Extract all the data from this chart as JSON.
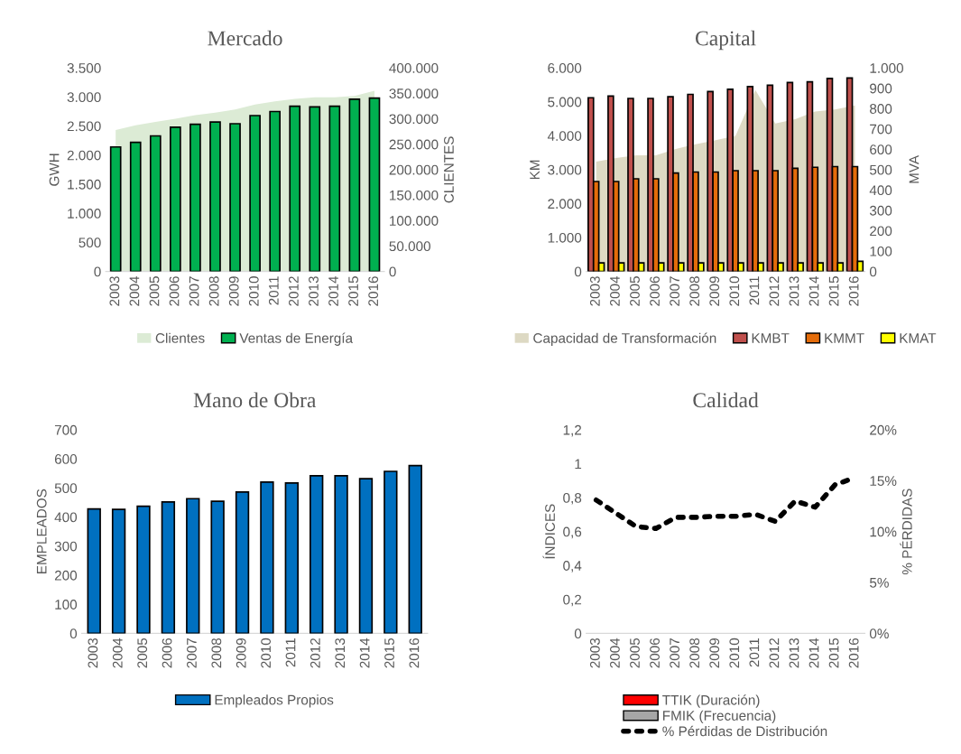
{
  "chart_data": [
    {
      "type": "bar",
      "title": "Mercado",
      "ylabel": "GWH",
      "y2label": "CLIENTES",
      "categories": [
        "2003",
        "2004",
        "2005",
        "2006",
        "2007",
        "2008",
        "2009",
        "2010",
        "2011",
        "2012",
        "2013",
        "2014",
        "2015",
        "2016"
      ],
      "series": [
        {
          "name": "Clientes",
          "type": "area",
          "axis": "y2",
          "color": "#dcebd5",
          "values": [
            278000,
            287000,
            294000,
            300000,
            307000,
            312000,
            318000,
            328000,
            334000,
            339000,
            342000,
            342000,
            345000,
            355000
          ]
        },
        {
          "name": "Ventas de Energía",
          "color": "#00b050",
          "values": [
            2140,
            2220,
            2330,
            2480,
            2530,
            2570,
            2540,
            2680,
            2750,
            2840,
            2830,
            2840,
            2960,
            2980
          ]
        }
      ],
      "ylim": [
        0,
        3500
      ],
      "yticks": [
        0,
        {
          "value": 500,
          "label": "500"
        },
        {
          "value": 1000,
          "label": "1.000"
        },
        {
          "value": 1500,
          "label": "1.500"
        },
        {
          "value": 2000,
          "label": "2.000"
        },
        {
          "value": 2500,
          "label": "2.500"
        },
        {
          "value": 3000,
          "label": "3.000"
        },
        {
          "value": 3500,
          "label": "3.500"
        }
      ],
      "y2lim": [
        0,
        400000
      ],
      "y2ticks": [
        0,
        {
          "value": 50000,
          "label": "50.000"
        },
        {
          "value": 100000,
          "label": "100.000"
        },
        {
          "value": 150000,
          "label": "150.000"
        },
        {
          "value": 200000,
          "label": "200.000"
        },
        {
          "value": 250000,
          "label": "250.000"
        },
        {
          "value": 300000,
          "label": "300.000"
        },
        {
          "value": 350000,
          "label": "350.000"
        },
        {
          "value": 400000,
          "label": "400.000"
        }
      ],
      "legend": "bottom",
      "grid": false
    },
    {
      "type": "bar",
      "title": "Capital",
      "ylabel": "KM",
      "y2label": "MVA",
      "categories": [
        "2003",
        "2004",
        "2005",
        "2006",
        "2007",
        "2008",
        "2009",
        "2010",
        "2011",
        "2012",
        "2013",
        "2014",
        "2015",
        "2016"
      ],
      "series": [
        {
          "name": "Capacidad de Transformación",
          "type": "area",
          "axis": "y2",
          "color": "#ddd9c3",
          "values": [
            539,
            557,
            570,
            570,
            602,
            625,
            645,
            666,
            891,
            727,
            748,
            786,
            795,
            816
          ]
        },
        {
          "name": "KMBT",
          "color": "#c0504d",
          "values": [
            5120,
            5170,
            5100,
            5100,
            5150,
            5220,
            5300,
            5370,
            5450,
            5490,
            5570,
            5590,
            5690,
            5700
          ]
        },
        {
          "name": "KMMT",
          "color": "#e46c0a",
          "values": [
            2650,
            2650,
            2730,
            2730,
            2900,
            2930,
            2930,
            2970,
            2970,
            2970,
            3040,
            3070,
            3090,
            3090
          ]
        },
        {
          "name": "KMAT",
          "color": "#ffff00",
          "values": [
            250,
            250,
            250,
            250,
            250,
            250,
            250,
            250,
            250,
            250,
            250,
            250,
            250,
            300
          ]
        }
      ],
      "ylim": [
        0,
        6000
      ],
      "yticks": [
        0,
        {
          "value": 1000,
          "label": "1.000"
        },
        {
          "value": 2000,
          "label": "2.000"
        },
        {
          "value": 3000,
          "label": "3.000"
        },
        {
          "value": 4000,
          "label": "4.000"
        },
        {
          "value": 5000,
          "label": "5.000"
        },
        {
          "value": 6000,
          "label": "6.000"
        }
      ],
      "y2lim": [
        0,
        1000
      ],
      "y2ticks": [
        0,
        100,
        200,
        300,
        400,
        500,
        600,
        700,
        800,
        900,
        {
          "value": 1000,
          "label": "1.000"
        }
      ],
      "legend": "bottom",
      "grid": false
    },
    {
      "type": "bar",
      "title": "Mano de Obra",
      "ylabel": "EMPLEADOS",
      "categories": [
        "2003",
        "2004",
        "2005",
        "2006",
        "2007",
        "2008",
        "2009",
        "2010",
        "2011",
        "2012",
        "2013",
        "2014",
        "2015",
        "2016"
      ],
      "series": [
        {
          "name": "Empleados Propios",
          "color": "#0070c0",
          "values": [
            428,
            426,
            437,
            452,
            463,
            454,
            486,
            520,
            517,
            542,
            542,
            532,
            557,
            577
          ]
        }
      ],
      "ylim": [
        0,
        700
      ],
      "yticks": [
        0,
        100,
        200,
        300,
        400,
        500,
        600,
        700
      ],
      "legend": "bottom",
      "grid": false
    },
    {
      "type": "bar",
      "title": "Calidad",
      "ylabel": "ÍNDICES",
      "y2label": "% PÉRDIDAS",
      "categories": [
        "2003",
        "2004",
        "2005",
        "2006",
        "2007",
        "2008",
        "2009",
        "2010",
        "2011",
        "2012",
        "2013",
        "2014",
        "2015",
        "2016"
      ],
      "series": [
        {
          "name": "TTIK (Duración)",
          "color": "#ff0000",
          "values": [
            null,
            null,
            null,
            null,
            null,
            null,
            null,
            null,
            null,
            null,
            null,
            null,
            null,
            null
          ]
        },
        {
          "name": "FMIK (Frecuencia)",
          "color": "#a6a6a6",
          "values": [
            null,
            null,
            null,
            null,
            null,
            null,
            null,
            null,
            null,
            null,
            null,
            null,
            null,
            null
          ]
        },
        {
          "name": "% Pérdidas de Distribución",
          "type": "line",
          "axis": "y2",
          "color": "#000000",
          "line_style": "dotted",
          "values": [
            13.1,
            11.8,
            10.5,
            10.3,
            11.4,
            11.4,
            11.5,
            11.5,
            11.7,
            11.0,
            13.0,
            12.4,
            14.6,
            15.3
          ]
        }
      ],
      "ylim": [
        0,
        1.2
      ],
      "yticks": [
        0,
        {
          "value": 0.2,
          "label": "0,2"
        },
        {
          "value": 0.4,
          "label": "0,4"
        },
        {
          "value": 0.6,
          "label": "0,6"
        },
        {
          "value": 0.8,
          "label": "0,8"
        },
        1,
        {
          "value": 1.2,
          "label": "1,2"
        }
      ],
      "y2lim": [
        0,
        20
      ],
      "y2ticks": [
        {
          "value": 0,
          "label": "0%"
        },
        {
          "value": 5,
          "label": "5%"
        },
        {
          "value": 10,
          "label": "10%"
        },
        {
          "value": 15,
          "label": "15%"
        },
        {
          "value": 20,
          "label": "20%"
        }
      ],
      "legend": "bottom",
      "grid": false
    }
  ]
}
